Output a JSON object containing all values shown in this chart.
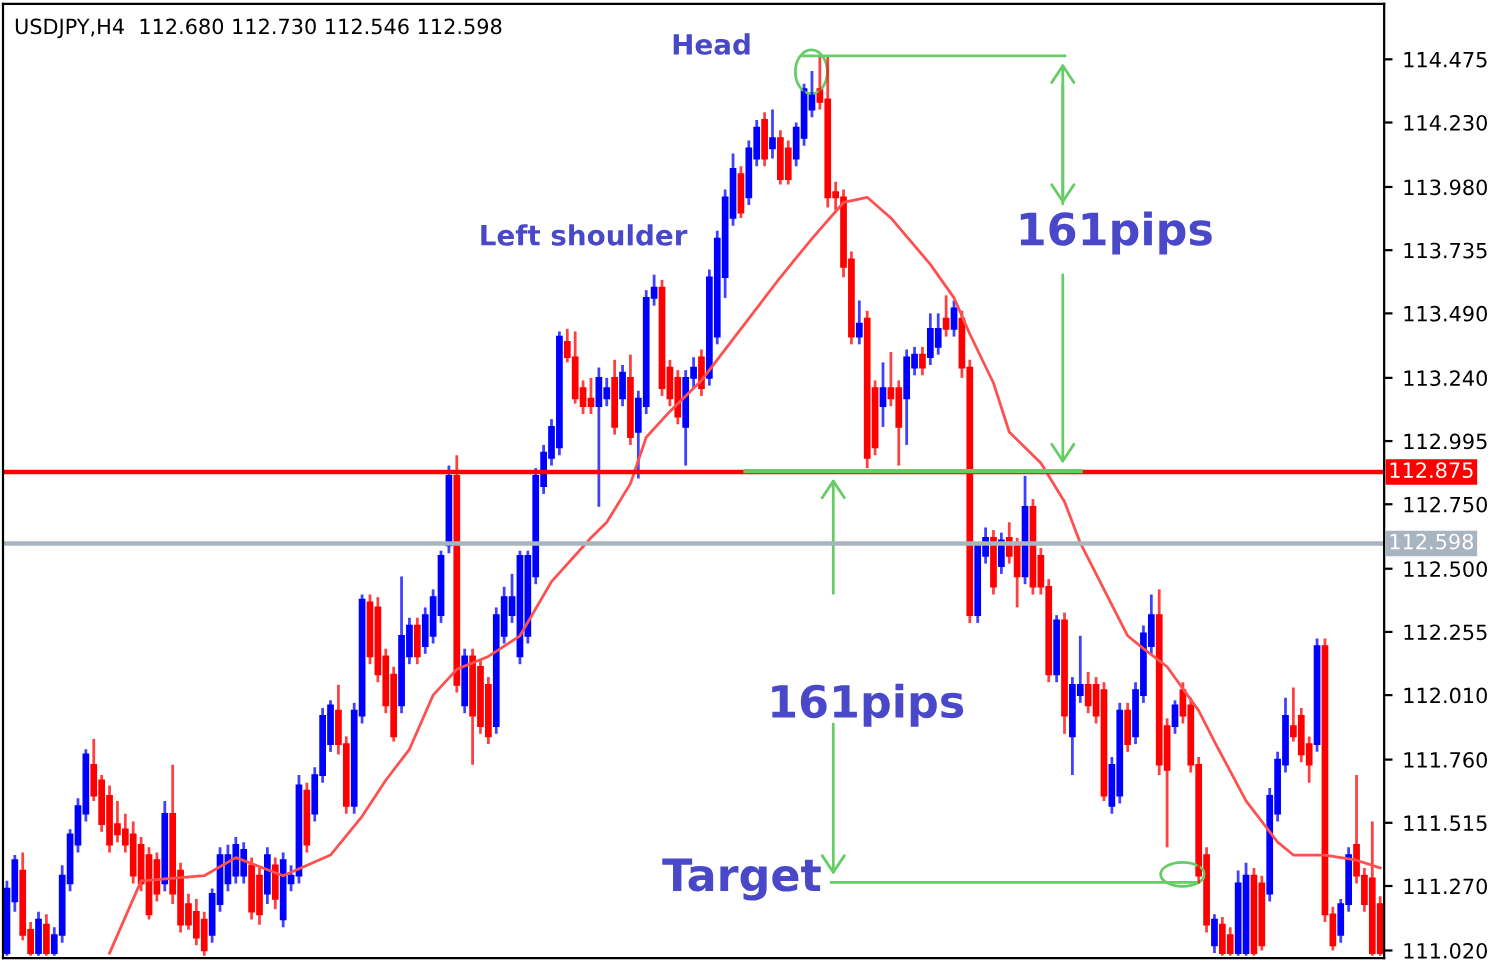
{
  "chart_data": {
    "type": "candlestick",
    "title": "USDJPY,H4  112.680 112.730 112.546 112.598",
    "annotations": [
      "Head",
      "Left shoulder",
      "161pips",
      "161pips",
      "Target"
    ],
    "categories": [
      null,
      null,
      null,
      null,
      null,
      null,
      null,
      null,
      null,
      null,
      null,
      null,
      null,
      null,
      null,
      null,
      null,
      null,
      null,
      null,
      null,
      null,
      null,
      null,
      null,
      null,
      null,
      null,
      null,
      null,
      null,
      null,
      null,
      null,
      null,
      null,
      null,
      null,
      null,
      null,
      null,
      null,
      null,
      null,
      null,
      null,
      null,
      null,
      null,
      null,
      null,
      null,
      null,
      null,
      null,
      null,
      null,
      null,
      null,
      null,
      null,
      null,
      null,
      null,
      null,
      null,
      null,
      null,
      null,
      null,
      null,
      null,
      null,
      null,
      null,
      null,
      null,
      null,
      null,
      null,
      null,
      null,
      null,
      null,
      null,
      null,
      null,
      null,
      null,
      null,
      null,
      null,
      null,
      null,
      null,
      null,
      null,
      null,
      null,
      null,
      null,
      null,
      null,
      null,
      null,
      null,
      null,
      null,
      null,
      null,
      null,
      null,
      null,
      null,
      null,
      null,
      null,
      null,
      null,
      null,
      null,
      null,
      null,
      null,
      null,
      null,
      null,
      null,
      null,
      null,
      null,
      null,
      null,
      null,
      null,
      null,
      null,
      null,
      null,
      null,
      null,
      null,
      null,
      null,
      null,
      null,
      null,
      null,
      null,
      null,
      null,
      null,
      null,
      null,
      null,
      null,
      null,
      null,
      null,
      null,
      null,
      null,
      null,
      null,
      null,
      null,
      null,
      null,
      null,
      null,
      null,
      null,
      null,
      null,
      null
    ],
    "colors": [
      "#0000ff",
      "#0000ff",
      "#ff0000",
      "#ff0000",
      "#0000ff",
      "#ff0000",
      "#0000ff",
      "#0000ff",
      "#0000ff",
      "#0000ff",
      "#0000ff",
      "#ff0000",
      "#ff0000",
      "#ff0000",
      "#ff0000",
      "#ff0000",
      "#ff0000",
      "#ff0000",
      "#ff0000",
      "#ff0000",
      "#0000ff",
      "#ff0000",
      "#ff0000",
      "#ff0000",
      "#ff0000",
      "#ff0000",
      "#0000ff",
      "#0000ff",
      "#0000ff",
      "#0000ff",
      "#0000ff",
      "#ff0000",
      "#ff0000",
      "#0000ff",
      "#ff0000",
      "#0000ff",
      "#0000ff",
      "#0000ff",
      "#ff0000",
      "#0000ff",
      "#0000ff",
      "#0000ff",
      "#ff0000",
      "#ff0000",
      "#0000ff",
      "#0000ff",
      "#ff0000",
      "#ff0000",
      "#ff0000",
      "#ff0000",
      "#0000ff",
      "#0000ff",
      "#ff0000",
      "#0000ff",
      "#0000ff",
      "#0000ff",
      "#0000ff",
      "#ff0000",
      "#0000ff",
      "#ff0000",
      "#ff0000",
      "#ff0000",
      "#0000ff",
      "#0000ff",
      "#0000ff",
      "#0000ff",
      "#0000ff",
      "#0000ff",
      "#0000ff",
      "#0000ff",
      "#0000ff",
      "#ff0000",
      "#ff0000",
      "#ff0000",
      "#ff0000",
      "#0000ff",
      "#0000ff",
      "#ff0000",
      "#0000ff",
      "#ff0000",
      "#0000ff",
      "#0000ff",
      "#0000ff",
      "#ff0000",
      "#ff0000",
      "#ff0000",
      "#0000ff",
      "#0000ff",
      "#ff0000",
      "#0000ff",
      "#0000ff",
      "#0000ff",
      "#0000ff",
      "#ff0000",
      "#0000ff",
      "#0000ff",
      "#ff0000",
      "#0000ff",
      "#ff0000",
      "#ff0000",
      "#0000ff",
      "#0000ff",
      "#0000ff",
      "#ff0000",
      "#ff0000",
      "#ff0000",
      "#ff0000",
      "#ff0000",
      "#0000ff",
      "#ff0000",
      "#ff0000",
      "#0000ff",
      "#ff0000",
      "#ff0000",
      "#0000ff",
      "#0000ff",
      "#ff0000",
      "#0000ff",
      "#0000ff",
      "#ff0000",
      "#0000ff",
      "#ff0000",
      "#ff0000",
      "#0000ff",
      "#0000ff",
      "#ff0000",
      "#0000ff",
      "#ff0000",
      "#ff0000",
      "#0000ff",
      "#ff0000",
      "#ff0000",
      "#ff0000",
      "#0000ff",
      "#ff0000",
      "#0000ff",
      "#0000ff",
      "#ff0000",
      "#ff0000",
      "#ff0000",
      "#0000ff",
      "#0000ff",
      "#ff0000",
      "#0000ff",
      "#0000ff",
      "#0000ff",
      "#ff0000",
      "#ff0000",
      "#0000ff",
      "#ff0000",
      "#ff0000",
      "#ff0000",
      "#ff0000",
      "#0000ff",
      "#ff0000",
      "#ff0000",
      "#0000ff",
      "#0000ff",
      "#ff0000",
      "#ff0000",
      "#0000ff",
      "#0000ff",
      "#0000ff",
      "#ff0000",
      "#ff0000",
      "#ff0000",
      "#0000ff",
      "#ff0000",
      "#ff0000",
      "#0000ff",
      "#0000ff",
      "#ff0000",
      "#ff0000",
      "#ff0000",
      "#ff0000"
    ],
    "ohlc": [
      [
        111.01,
        111.29,
        111.0,
        111.26
      ],
      [
        111.21,
        111.39,
        111.17,
        111.37
      ],
      [
        111.33,
        111.4,
        111.06,
        111.08
      ],
      [
        111.1,
        111.13,
        111.0,
        111.01
      ],
      [
        111.01,
        111.17,
        111.0,
        111.14
      ],
      [
        111.12,
        111.16,
        111.0,
        111.01
      ],
      [
        111.01,
        111.11,
        111.0,
        111.08
      ],
      [
        111.08,
        111.35,
        111.05,
        111.31
      ],
      [
        111.28,
        111.49,
        111.25,
        111.47
      ],
      [
        111.43,
        111.61,
        111.4,
        111.58
      ],
      [
        111.55,
        111.8,
        111.52,
        111.78
      ],
      [
        111.74,
        111.84,
        111.6,
        111.62
      ],
      [
        111.68,
        111.7,
        111.48,
        111.51
      ],
      [
        111.62,
        111.66,
        111.4,
        111.43
      ],
      [
        111.51,
        111.6,
        111.44,
        111.47
      ],
      [
        111.49,
        111.55,
        111.4,
        111.43
      ],
      [
        111.47,
        111.52,
        111.28,
        111.31
      ],
      [
        111.43,
        111.46,
        111.25,
        111.28
      ],
      [
        111.39,
        111.42,
        111.14,
        111.16
      ],
      [
        111.37,
        111.4,
        111.21,
        111.24
      ],
      [
        111.28,
        111.6,
        111.25,
        111.55
      ],
      [
        111.55,
        111.74,
        111.2,
        111.24
      ],
      [
        111.33,
        111.36,
        111.09,
        111.12
      ],
      [
        111.2,
        111.24,
        111.1,
        111.12
      ],
      [
        111.17,
        111.22,
        111.04,
        111.07
      ],
      [
        111.14,
        111.17,
        111.0,
        111.02
      ],
      [
        111.08,
        111.26,
        111.05,
        111.24
      ],
      [
        111.2,
        111.42,
        111.17,
        111.39
      ],
      [
        111.28,
        111.43,
        111.25,
        111.39
      ],
      [
        111.31,
        111.46,
        111.28,
        111.43
      ],
      [
        111.31,
        111.44,
        111.28,
        111.41
      ],
      [
        111.35,
        111.38,
        111.14,
        111.17
      ],
      [
        111.31,
        111.34,
        111.12,
        111.16
      ],
      [
        111.24,
        111.42,
        111.2,
        111.39
      ],
      [
        111.35,
        111.38,
        111.18,
        111.22
      ],
      [
        111.14,
        111.4,
        111.11,
        111.37
      ],
      [
        111.28,
        111.35,
        111.25,
        111.31
      ],
      [
        111.31,
        111.7,
        111.28,
        111.66
      ],
      [
        111.64,
        111.67,
        111.4,
        111.43
      ],
      [
        111.55,
        111.73,
        111.52,
        111.7
      ],
      [
        111.7,
        111.96,
        111.67,
        111.93
      ],
      [
        111.82,
        111.99,
        111.79,
        111.97
      ],
      [
        111.95,
        112.05,
        111.78,
        111.82
      ],
      [
        111.82,
        111.85,
        111.55,
        111.58
      ],
      [
        111.58,
        111.98,
        111.55,
        111.95
      ],
      [
        111.93,
        112.4,
        111.9,
        112.38
      ],
      [
        112.37,
        112.4,
        112.13,
        112.16
      ],
      [
        112.35,
        112.39,
        112.06,
        112.09
      ],
      [
        112.16,
        112.19,
        111.94,
        111.97
      ],
      [
        112.09,
        112.12,
        111.83,
        111.85
      ],
      [
        111.97,
        112.47,
        111.94,
        112.24
      ],
      [
        112.16,
        112.31,
        112.13,
        112.28
      ],
      [
        112.28,
        112.31,
        112.13,
        112.16
      ],
      [
        112.2,
        112.35,
        112.17,
        112.32
      ],
      [
        112.24,
        112.42,
        112.21,
        112.39
      ],
      [
        112.32,
        112.57,
        112.29,
        112.55
      ],
      [
        112.59,
        112.9,
        112.56,
        112.86
      ],
      [
        112.86,
        112.94,
        112.02,
        112.05
      ],
      [
        111.97,
        112.19,
        111.94,
        112.16
      ],
      [
        112.16,
        112.19,
        111.74,
        111.93
      ],
      [
        112.12,
        112.15,
        111.86,
        111.89
      ],
      [
        112.05,
        112.08,
        111.82,
        111.85
      ],
      [
        111.89,
        112.35,
        111.86,
        112.32
      ],
      [
        112.24,
        112.43,
        112.21,
        112.39
      ],
      [
        112.32,
        112.48,
        112.29,
        112.39
      ],
      [
        112.16,
        112.57,
        112.13,
        112.55
      ],
      [
        112.24,
        112.57,
        112.21,
        112.55
      ],
      [
        112.47,
        112.89,
        112.44,
        112.86
      ],
      [
        112.82,
        112.98,
        112.79,
        112.95
      ],
      [
        112.93,
        113.08,
        112.9,
        113.05
      ],
      [
        112.97,
        113.42,
        112.94,
        113.4
      ],
      [
        113.38,
        113.43,
        113.3,
        113.32
      ],
      [
        113.32,
        113.42,
        113.14,
        113.16
      ],
      [
        113.2,
        113.23,
        113.1,
        113.13
      ],
      [
        113.16,
        113.24,
        113.1,
        113.13
      ],
      [
        113.13,
        113.28,
        112.74,
        113.24
      ],
      [
        113.16,
        113.24,
        113.13,
        113.2
      ],
      [
        113.24,
        113.31,
        113.02,
        113.05
      ],
      [
        113.16,
        113.29,
        113.13,
        113.26
      ],
      [
        113.24,
        113.33,
        112.98,
        113.01
      ],
      [
        113.03,
        113.19,
        112.85,
        113.16
      ],
      [
        113.13,
        113.58,
        113.1,
        113.55
      ],
      [
        113.55,
        113.64,
        113.52,
        113.59
      ],
      [
        113.59,
        113.62,
        113.17,
        113.2
      ],
      [
        113.28,
        113.31,
        113.13,
        113.16
      ],
      [
        113.24,
        113.27,
        113.06,
        113.09
      ],
      [
        113.05,
        113.27,
        112.9,
        113.24
      ],
      [
        113.24,
        113.32,
        113.2,
        113.28
      ],
      [
        113.32,
        113.35,
        113.17,
        113.2
      ],
      [
        113.24,
        113.66,
        113.21,
        113.63
      ],
      [
        113.4,
        113.81,
        113.37,
        113.78
      ],
      [
        113.63,
        113.97,
        113.55,
        113.94
      ],
      [
        113.86,
        114.11,
        113.83,
        114.05
      ],
      [
        114.03,
        114.06,
        113.86,
        113.88
      ],
      [
        113.94,
        114.16,
        113.91,
        114.13
      ],
      [
        114.09,
        114.24,
        114.06,
        114.21
      ],
      [
        114.24,
        114.27,
        114.06,
        114.09
      ],
      [
        114.13,
        114.28,
        114.09,
        114.17
      ],
      [
        114.17,
        114.2,
        113.99,
        114.01
      ],
      [
        114.13,
        114.16,
        113.99,
        114.01
      ],
      [
        114.09,
        114.23,
        114.06,
        114.21
      ],
      [
        114.17,
        114.38,
        114.14,
        114.36
      ],
      [
        114.28,
        114.43,
        114.25,
        114.34
      ],
      [
        114.36,
        114.49,
        114.28,
        114.31
      ],
      [
        114.32,
        114.49,
        113.9,
        113.94
      ],
      [
        113.96,
        114.0,
        113.89,
        113.94
      ],
      [
        113.94,
        113.97,
        113.63,
        113.67
      ],
      [
        113.7,
        113.73,
        113.37,
        113.4
      ],
      [
        113.4,
        113.54,
        113.37,
        113.45
      ],
      [
        113.47,
        113.5,
        112.89,
        112.93
      ],
      [
        113.2,
        113.23,
        112.94,
        112.97
      ],
      [
        113.13,
        113.3,
        113.05,
        113.2
      ],
      [
        113.2,
        113.34,
        113.13,
        113.16
      ],
      [
        113.2,
        113.23,
        112.9,
        113.05
      ],
      [
        113.16,
        113.35,
        112.98,
        113.32
      ],
      [
        113.28,
        113.36,
        113.25,
        113.33
      ],
      [
        113.33,
        113.36,
        113.25,
        113.28
      ],
      [
        113.32,
        113.49,
        113.29,
        113.43
      ],
      [
        113.36,
        113.49,
        113.33,
        113.43
      ],
      [
        113.47,
        113.56,
        113.4,
        113.43
      ],
      [
        113.43,
        113.54,
        113.4,
        113.51
      ],
      [
        113.47,
        113.5,
        113.24,
        113.28
      ],
      [
        113.28,
        113.31,
        112.29,
        112.32
      ],
      [
        112.32,
        112.6,
        112.29,
        112.59
      ],
      [
        112.55,
        112.66,
        112.52,
        112.62
      ],
      [
        112.62,
        112.65,
        112.4,
        112.43
      ],
      [
        112.51,
        112.64,
        112.48,
        112.61
      ],
      [
        112.62,
        112.68,
        112.52,
        112.55
      ],
      [
        112.59,
        112.62,
        112.35,
        112.47
      ],
      [
        112.47,
        112.86,
        112.44,
        112.74
      ],
      [
        112.74,
        112.77,
        112.4,
        112.43
      ],
      [
        112.55,
        112.58,
        112.4,
        112.43
      ],
      [
        112.43,
        112.46,
        112.06,
        112.09
      ],
      [
        112.09,
        112.32,
        112.06,
        112.3
      ],
      [
        112.3,
        112.33,
        111.86,
        111.93
      ],
      [
        111.85,
        112.08,
        111.7,
        112.05
      ],
      [
        112.01,
        112.24,
        111.98,
        112.05
      ],
      [
        112.05,
        112.1,
        111.94,
        111.97
      ],
      [
        112.05,
        112.08,
        111.9,
        111.93
      ],
      [
        112.03,
        112.06,
        111.6,
        111.62
      ],
      [
        111.58,
        111.77,
        111.55,
        111.74
      ],
      [
        111.62,
        111.98,
        111.59,
        111.95
      ],
      [
        111.95,
        111.98,
        111.79,
        111.82
      ],
      [
        111.85,
        112.06,
        111.82,
        112.03
      ],
      [
        112.01,
        112.28,
        111.98,
        112.25
      ],
      [
        112.2,
        112.4,
        112.17,
        112.32
      ],
      [
        112.32,
        112.42,
        111.7,
        111.74
      ],
      [
        111.89,
        111.92,
        111.42,
        111.72
      ],
      [
        111.89,
        111.99,
        111.86,
        111.97
      ],
      [
        112.03,
        112.06,
        111.9,
        111.93
      ],
      [
        111.97,
        112.0,
        111.71,
        111.74
      ],
      [
        111.74,
        111.77,
        111.28,
        111.31
      ],
      [
        111.39,
        111.42,
        111.09,
        111.12
      ],
      [
        111.04,
        111.16,
        111.01,
        111.14
      ],
      [
        111.12,
        111.15,
        111.0,
        111.01
      ],
      [
        111.08,
        111.11,
        111.0,
        111.01
      ],
      [
        111.01,
        111.33,
        111.0,
        111.28
      ],
      [
        111.01,
        111.36,
        111.0,
        111.31
      ],
      [
        111.31,
        111.34,
        111.0,
        111.01
      ],
      [
        111.28,
        111.31,
        111.02,
        111.04
      ],
      [
        111.24,
        111.65,
        111.21,
        111.62
      ],
      [
        111.55,
        111.79,
        111.52,
        111.76
      ],
      [
        111.74,
        112.0,
        111.71,
        111.93
      ],
      [
        111.89,
        112.04,
        111.83,
        111.85
      ],
      [
        111.93,
        111.96,
        111.75,
        111.78
      ],
      [
        111.82,
        111.85,
        111.67,
        111.74
      ],
      [
        111.82,
        112.23,
        111.79,
        112.2
      ],
      [
        112.2,
        112.23,
        111.13,
        111.16
      ],
      [
        111.16,
        111.19,
        111.02,
        111.04
      ],
      [
        111.08,
        111.22,
        111.05,
        111.2
      ],
      [
        111.2,
        111.42,
        111.17,
        111.39
      ],
      [
        111.43,
        111.7,
        111.28,
        111.31
      ],
      [
        111.31,
        111.34,
        111.17,
        111.2
      ],
      [
        111.3,
        111.52,
        111.0,
        111.01
      ],
      [
        111.2,
        111.23,
        111.0,
        111.01
      ]
    ],
    "series": [
      {
        "type": "line",
        "color": "#ff5050",
        "values": [
          null,
          null,
          null,
          null,
          null,
          null,
          null,
          null,
          null,
          null,
          null,
          null,
          null,
          111.01,
          null,
          null,
          null,
          111.29,
          null,
          null,
          null,
          null,
          null,
          null,
          null,
          111.31,
          null,
          null,
          null,
          111.38,
          null,
          null,
          null,
          null,
          null,
          111.31,
          null,
          null,
          null,
          null,
          null,
          111.39,
          null,
          null,
          null,
          111.54,
          null,
          null,
          111.68,
          null,
          null,
          111.8,
          null,
          null,
          112.01,
          null,
          null,
          112.11,
          null,
          null,
          null,
          112.16,
          null,
          null,
          null,
          112.24,
          null,
          null,
          null,
          112.45,
          null,
          null,
          null,
          null,
          112.62,
          null,
          112.68,
          null,
          null,
          112.83,
          null,
          113.01,
          null,
          null,
          113.11,
          null,
          null,
          null,
          113.23,
          null,
          null,
          null,
          null,
          113.43,
          null,
          null,
          null,
          null,
          113.63,
          null,
          null,
          null,
          113.78,
          null,
          null,
          null,
          113.92,
          null,
          null,
          113.94,
          null,
          null,
          113.86,
          null,
          null,
          null,
          null,
          113.68,
          null,
          null,
          113.55,
          null,
          113.41,
          null,
          null,
          113.22,
          null,
          113.03,
          null,
          null,
          null,
          112.91,
          null,
          null,
          112.76,
          null,
          112.6,
          null,
          null,
          null,
          null,
          null,
          112.24,
          null,
          112.19,
          null,
          null,
          112.12,
          null,
          null,
          null,
          111.95,
          null,
          111.83,
          null,
          null,
          null,
          111.6,
          null,
          null,
          null,
          111.44,
          null,
          111.39,
          null,
          null,
          null,
          111.39,
          null,
          null,
          null,
          111.37,
          null,
          null,
          111.34
        ]
      }
    ],
    "ylim": [
      110.99,
      114.69
    ],
    "yticks": [
      114.475,
      {
        "value": 114.23,
        "label": "114.230"
      },
      {
        "value": 113.98,
        "label": "113.980"
      },
      113.735,
      {
        "value": 113.49,
        "label": "113.490"
      },
      {
        "value": 113.24,
        "label": "113.240"
      },
      112.995,
      {
        "value": 112.75,
        "label": "112.750"
      },
      {
        "value": 112.5,
        "label": "112.500"
      },
      112.255,
      {
        "value": 112.01,
        "label": "112.010"
      },
      {
        "value": 111.76,
        "label": "111.760"
      },
      111.515,
      {
        "value": 111.27,
        "label": "111.270"
      },
      {
        "value": 111.02,
        "label": "111.020"
      }
    ],
    "ref_lines": [
      {
        "axis": "y",
        "value": 112.875,
        "label": "112.875",
        "color": "#ff0000"
      },
      {
        "axis": "y",
        "value": 112.598,
        "label": "112.598",
        "color": "#a8b4c0"
      }
    ],
    "tick_labels": "y",
    "grid": false
  }
}
